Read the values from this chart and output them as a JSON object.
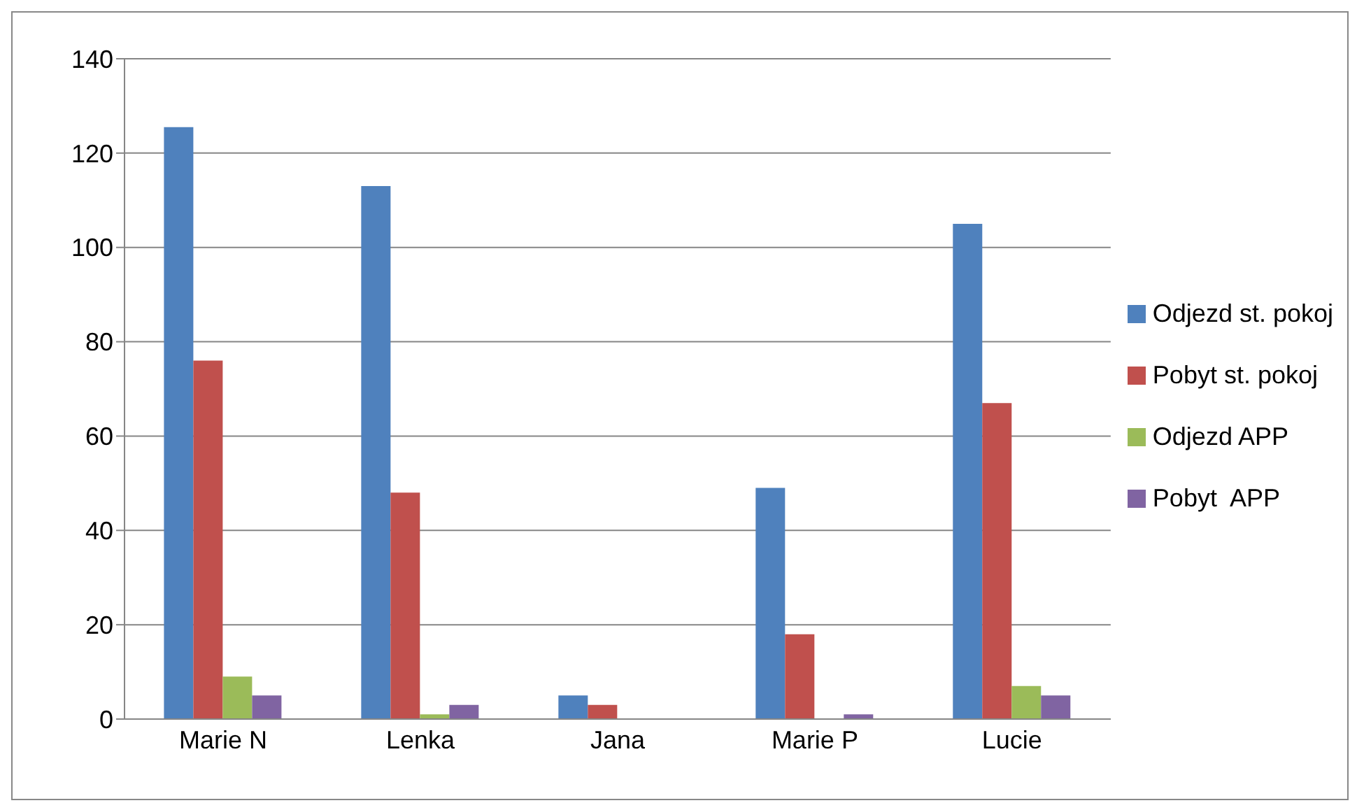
{
  "chart_data": {
    "type": "bar",
    "categories": [
      "Marie N",
      "Lenka",
      "Jana",
      "Marie P",
      "Lucie"
    ],
    "series": [
      {
        "name": "Odjezd st. pokoj",
        "color": "#4f81bd",
        "values": [
          125.5,
          113,
          5,
          49,
          105
        ]
      },
      {
        "name": "Pobyt st. pokoj",
        "color": "#c0504d",
        "values": [
          76,
          48,
          3,
          18,
          67
        ]
      },
      {
        "name": "Odjezd APP",
        "color": "#9bbb59",
        "values": [
          9,
          1,
          0,
          0,
          7
        ]
      },
      {
        "name": "Pobyt  APP",
        "color": "#8064a2",
        "values": [
          5,
          3,
          0,
          1,
          5
        ]
      }
    ],
    "ylim": [
      0,
      140
    ],
    "yticks": [
      0,
      20,
      40,
      60,
      80,
      100,
      120,
      140
    ],
    "grid": "y",
    "legend": "right"
  }
}
